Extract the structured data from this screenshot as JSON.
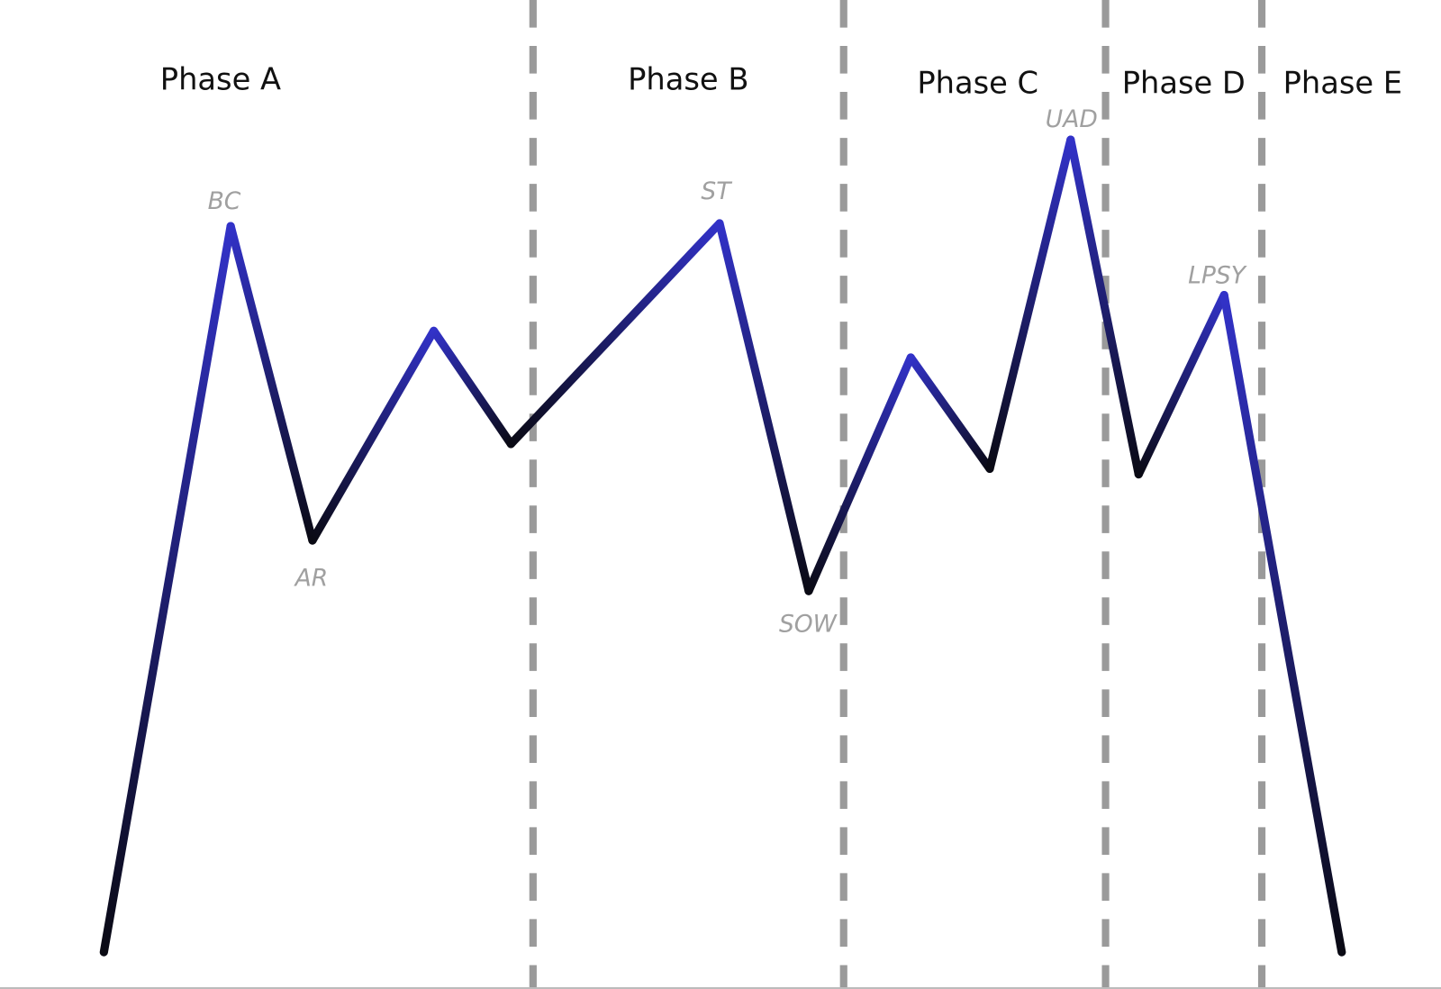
{
  "phases": [
    "Phase A",
    "Phase B",
    "Phase C",
    "Phase D",
    "Phase E"
  ],
  "events": [
    "BC",
    "AR",
    "ST",
    "SOW",
    "UAD",
    "LPSY"
  ]
}
